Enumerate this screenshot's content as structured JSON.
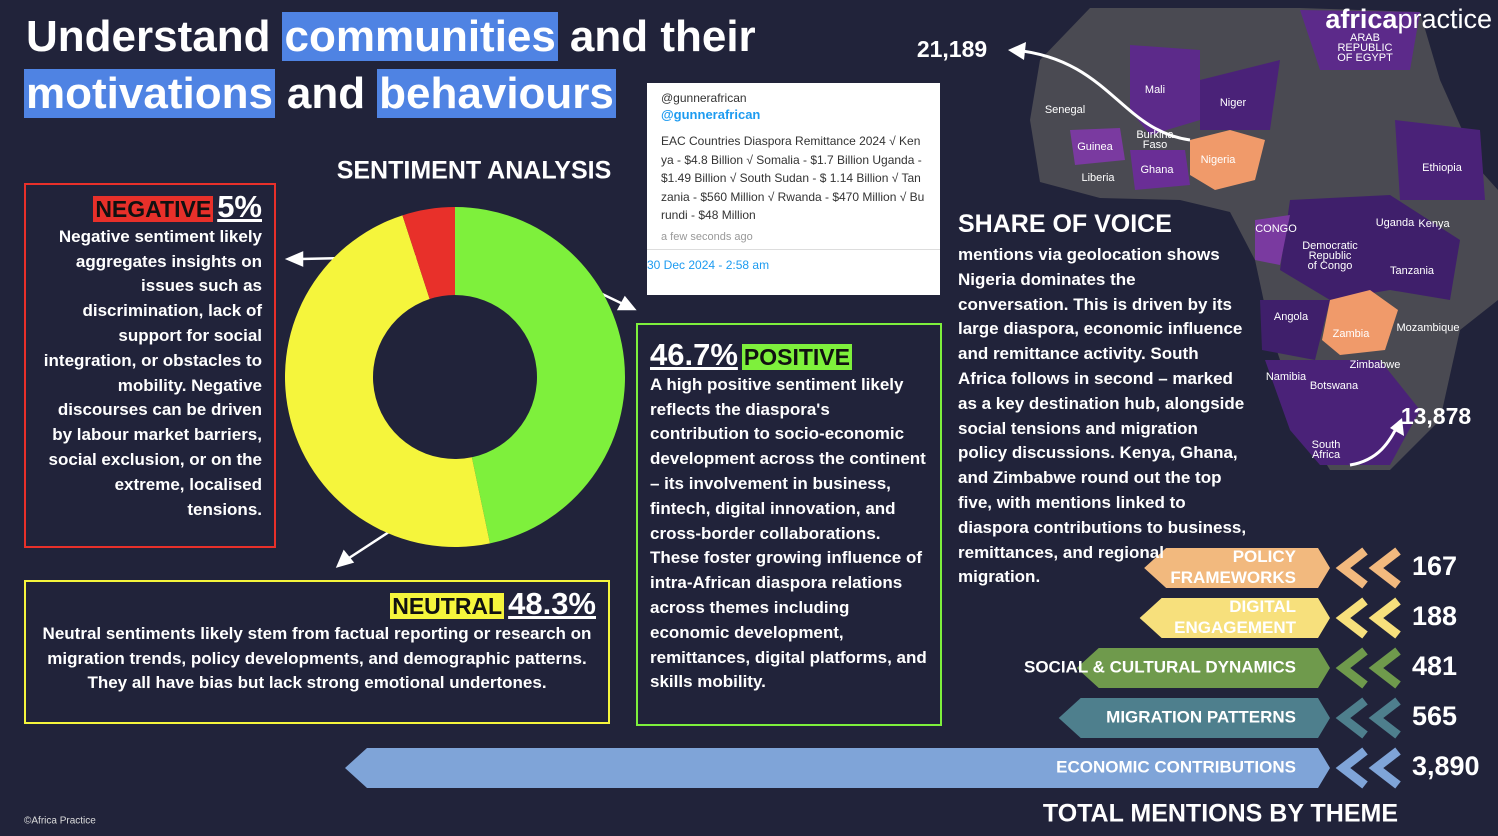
{
  "header": {
    "title_lines": [
      [
        {
          "text": "Understand",
          "hl": false
        },
        {
          "text": "communities",
          "hl": true
        },
        {
          "text": "and their",
          "hl": false
        }
      ],
      [
        {
          "text": "motivations",
          "hl": true
        },
        {
          "text": "and",
          "hl": false
        },
        {
          "text": "behaviours",
          "hl": true
        }
      ]
    ],
    "brand": [
      "africa",
      "practice"
    ]
  },
  "sentiment": {
    "title": "SENTIMENT ANALYSIS",
    "type": "donut",
    "segments": [
      {
        "name": "POSITIVE",
        "value": 46.7,
        "value_label": "46.7%",
        "color": "#7ef03c",
        "text": "A high positive sentiment likely reflects the diaspora's contribution to socio-economic development across the continent – its involvement in business, fintech, digital innovation, and cross-border collaborations. These foster growing influence of intra-African diaspora relations across themes including economic development, remittances, digital platforms, and skills mobility."
      },
      {
        "name": "NEUTRAL",
        "value": 48.3,
        "value_label": "48.3%",
        "color": "#f5f53c",
        "text": "Neutral sentiments likely stem from factual reporting or research on migration trends, policy developments, and demographic patterns. They all have bias but lack strong emotional undertones."
      },
      {
        "name": "NEGATIVE",
        "value": 5,
        "value_label": "5%",
        "color": "#e8302a",
        "text": "Negative sentiment likely aggregates insights on issues such as discrimination, lack of support for social integration, or obstacles to mobility. Negative discourses can be driven by labour market barriers, social exclusion, or on the extreme, localised tensions."
      }
    ]
  },
  "tweet": {
    "handle": "@gunnerafrican",
    "link": "@gunnerafrican",
    "text": "EAC Countries Diaspora Remittance 2024 √ Kenya - $4.8 Billion √ Somalia - $1.7 Billion Uganda - $1.49 Billion √ South Sudan - $ 1.14 Billion √ Tanzania - $560 Million √ Rwanda - $470 Million √ Burundi - $48 Million",
    "time": "a few seconds ago",
    "date": "30 Dec 2024 - 2:58 am"
  },
  "share_of_voice": {
    "title": "SHARE OF VOICE",
    "text": "mentions via geolocation shows Nigeria dominates the conversation. This is driven by its large diaspora, economic influence and remittance activity. South Africa follows  in second – marked as a key destination hub, alongside social tensions and migration policy discussions. Kenya, Ghana, and Zimbabwe round out the top five, with mentions linked to diaspora contributions  to business, remittances, and regional migration."
  },
  "map": {
    "callouts": [
      "21,189",
      "13,878"
    ],
    "countries": [
      {
        "lines": [
          "ARAB",
          "REPUBLIC",
          "OF EGYPT"
        ]
      },
      {
        "lines": [
          "Mali"
        ]
      },
      {
        "lines": [
          "Niger"
        ]
      },
      {
        "lines": [
          "Senegal"
        ]
      },
      {
        "lines": [
          "Burkina",
          "Faso"
        ]
      },
      {
        "lines": [
          "Guinea"
        ]
      },
      {
        "lines": [
          "Nigeria"
        ]
      },
      {
        "lines": [
          "Ghana"
        ]
      },
      {
        "lines": [
          "Liberia"
        ]
      },
      {
        "lines": [
          "Ethiopia"
        ]
      },
      {
        "lines": [
          "CONGO"
        ]
      },
      {
        "lines": [
          "Uganda"
        ]
      },
      {
        "lines": [
          "Kenya"
        ]
      },
      {
        "lines": [
          "Democratic",
          "Republic",
          "of Congo"
        ]
      },
      {
        "lines": [
          "Tanzania"
        ]
      },
      {
        "lines": [
          "Angola"
        ]
      },
      {
        "lines": [
          "Zambia"
        ]
      },
      {
        "lines": [
          "Mozambique"
        ]
      },
      {
        "lines": [
          "Zimbabwe"
        ]
      },
      {
        "lines": [
          "Namibia"
        ]
      },
      {
        "lines": [
          "Botswana"
        ]
      },
      {
        "lines": [
          "South",
          "Africa"
        ]
      }
    ]
  },
  "themes": {
    "title": "TOTAL MENTIONS BY THEME",
    "items": [
      {
        "name_lines": [
          "POLICY",
          "FRAMEWORKS"
        ],
        "value": 167,
        "color": "#f2b97e"
      },
      {
        "name_lines": [
          "DIGITAL",
          "ENGAGEMENT"
        ],
        "value": 188,
        "color": "#f7e07c"
      },
      {
        "name_lines": [
          "SOCIAL & CULTURAL DYNAMICS"
        ],
        "value": 481,
        "color": "#6f9a4c"
      },
      {
        "name_lines": [
          "MIGRATION PATTERNS"
        ],
        "value": 565,
        "color": "#4e7f8d"
      },
      {
        "name_lines": [
          "ECONOMIC CONTRIBUTIONS"
        ],
        "value": 3890,
        "value_label": "3,890",
        "color": "#7fa4d8"
      }
    ]
  },
  "footer": "©Africa Practice"
}
